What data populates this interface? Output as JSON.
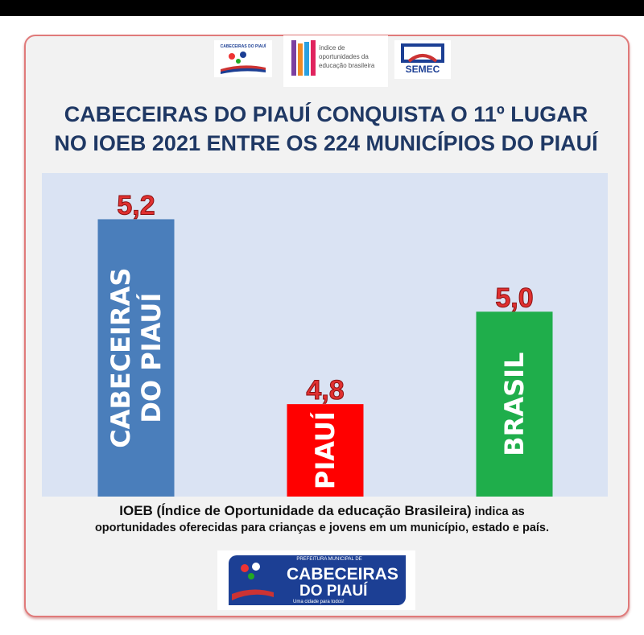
{
  "header": {
    "title_line1": "CABECEIRAS DO PIAUÍ CONQUISTA O 11º LUGAR",
    "title_line2": "NO IOEB 2021 ENTRE OS 224 MUNICÍPIOS  DO PIAUÍ",
    "logos": {
      "left": "CABECEIRAS DO PIAUÍ",
      "center": "ioeb índice de oportunidades da educação brasileira",
      "right": "SEMEC"
    }
  },
  "chart_data": {
    "type": "bar",
    "categories": [
      "CABECEIRAS DO PIAUÍ",
      "PIAUÍ",
      "BRASIL"
    ],
    "category_lines": [
      [
        "CABECEIRAS",
        "DO PIAUÍ"
      ],
      [
        "PIAUÍ"
      ],
      [
        "BRASIL"
      ]
    ],
    "values": [
      5.2,
      4.8,
      5.0
    ],
    "value_labels": [
      "5,2",
      "4,8",
      "5,0"
    ],
    "colors": [
      "#4a7ebb",
      "#ff0000",
      "#1fae4b"
    ],
    "ylim": [
      4.6,
      5.3
    ],
    "grid": false,
    "title": "",
    "xlabel": "",
    "ylabel": ""
  },
  "note": {
    "bold_part": "IOEB (Índice de Oportunidade da educação Brasileira)",
    "rest_line1": " indica as",
    "line2": "oportunidades oferecidas para crianças e jovens em um município, estado e país."
  },
  "footer_logo": {
    "top": "PREFEITURA MUNICIPAL DE",
    "line1": "CABECEIRAS",
    "line2": "DO PIAUÍ",
    "tagline": "Uma cidade para todos!"
  }
}
